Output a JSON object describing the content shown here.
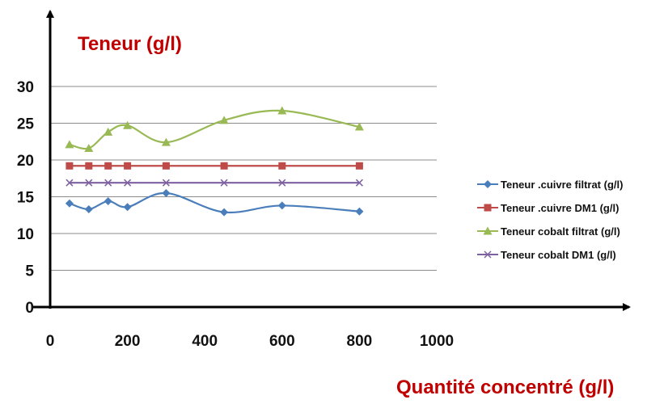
{
  "chart_data": {
    "type": "line",
    "title": "",
    "ylabel": "Teneur (g/l)",
    "xlabel": "Quantité concentré (g/l)",
    "xlim": [
      0,
      1000
    ],
    "ylim": [
      0,
      30
    ],
    "xticks": [
      "0",
      "200",
      "400",
      "600",
      "800",
      "1000"
    ],
    "yticks": [
      "0",
      "5",
      "10",
      "15",
      "20",
      "25",
      "30"
    ],
    "grid": "horizontal",
    "legend_position": "right",
    "smooth": true,
    "series": [
      {
        "name": "Teneur .cuivre filtrat (g/l)",
        "color": "#4a7ebb",
        "marker": "diamond",
        "x": [
          50,
          100,
          150,
          200,
          300,
          450,
          600,
          800
        ],
        "y": [
          14.1,
          13.3,
          14.4,
          13.6,
          15.5,
          12.9,
          13.8,
          13.0
        ]
      },
      {
        "name": "Teneur .cuivre DM1 (g/l)",
        "color": "#be4b48",
        "marker": "square",
        "x": [
          50,
          100,
          150,
          200,
          300,
          450,
          600,
          800
        ],
        "y": [
          19.2,
          19.2,
          19.2,
          19.2,
          19.2,
          19.2,
          19.2,
          19.2
        ]
      },
      {
        "name": "Teneur cobalt filtrat (g/l)",
        "color": "#98b954",
        "marker": "triangle",
        "x": [
          50,
          100,
          150,
          200,
          300,
          450,
          600,
          800
        ],
        "y": [
          22.1,
          21.6,
          23.8,
          24.7,
          22.4,
          25.4,
          26.7,
          24.5
        ]
      },
      {
        "name": "Teneur cobalt DM1 (g/l)",
        "color": "#7d60a0",
        "marker": "x",
        "x": [
          50,
          100,
          150,
          200,
          300,
          450,
          600,
          800
        ],
        "y": [
          16.9,
          16.9,
          16.9,
          16.9,
          16.9,
          16.9,
          16.9,
          16.9
        ]
      }
    ]
  }
}
